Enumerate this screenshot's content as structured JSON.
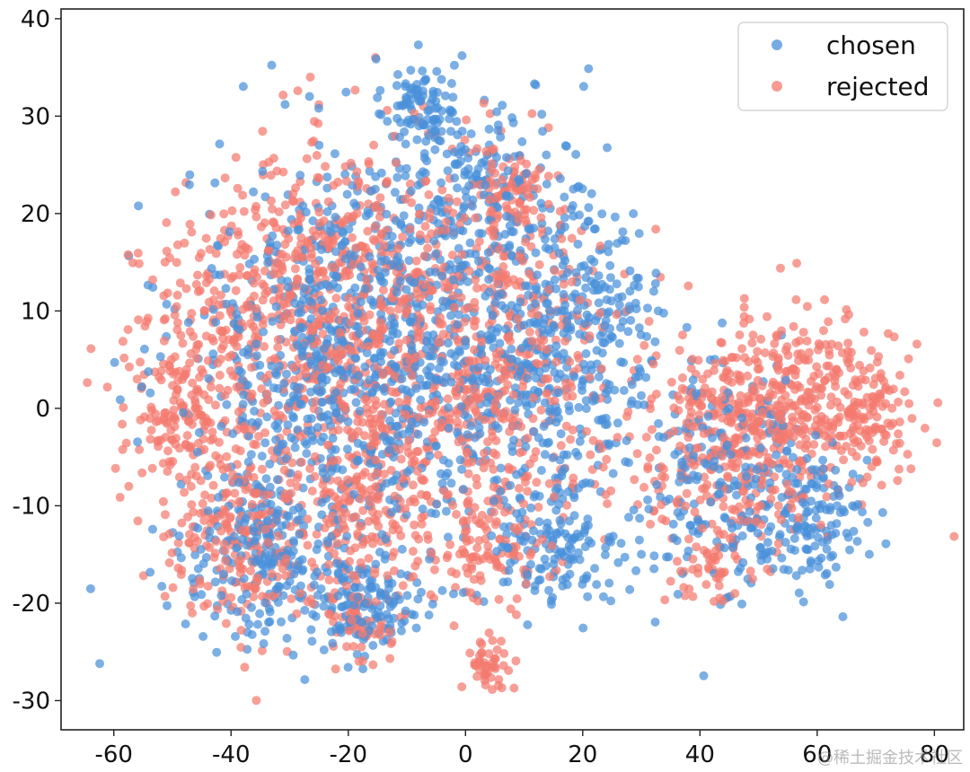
{
  "chart_data": {
    "type": "scatter",
    "title": "",
    "xlabel": "",
    "ylabel": "",
    "xlim": [
      -69,
      85
    ],
    "ylim": [
      -33,
      41
    ],
    "xticks": [
      -60,
      -40,
      -20,
      0,
      20,
      40,
      60,
      80
    ],
    "yticks": [
      -30,
      -20,
      -10,
      0,
      10,
      20,
      30,
      40
    ],
    "xtick_labels": [
      "-60",
      "-40",
      "-20",
      "0",
      "20",
      "40",
      "60",
      "80"
    ],
    "ytick_labels": [
      "-30",
      "-20",
      "-10",
      "0",
      "10",
      "20",
      "30",
      "40"
    ],
    "grid": false,
    "legend_position": "top-right",
    "series": [
      {
        "name": "chosen",
        "color": "#4a90d9",
        "clusters": [
          {
            "cx": -8,
            "cy": 31,
            "sx": 3.0,
            "sy": 2.5,
            "n": 90
          },
          {
            "cx": -25,
            "cy": 5,
            "sx": 12,
            "sy": 10,
            "n": 520
          },
          {
            "cx": -5,
            "cy": 8,
            "sx": 12,
            "sy": 10,
            "n": 520
          },
          {
            "cx": 15,
            "cy": 5,
            "sx": 9,
            "sy": 9,
            "n": 300
          },
          {
            "cx": -35,
            "cy": -15,
            "sx": 7,
            "sy": 4,
            "n": 200
          },
          {
            "cx": -18,
            "cy": -20,
            "sx": 6,
            "sy": 3,
            "n": 150
          },
          {
            "cx": 15,
            "cy": -15,
            "sx": 6,
            "sy": 3,
            "n": 120
          },
          {
            "cx": 45,
            "cy": -8,
            "sx": 9,
            "sy": 6,
            "n": 250
          },
          {
            "cx": 60,
            "cy": -12,
            "sx": 5,
            "sy": 3,
            "n": 100
          },
          {
            "cx": 5,
            "cy": 22,
            "sx": 8,
            "sy": 4,
            "n": 120
          },
          {
            "cx": 22,
            "cy": 10,
            "sx": 5,
            "sy": 4,
            "n": 80
          }
        ]
      },
      {
        "name": "rejected",
        "color": "#f47a6f",
        "clusters": [
          {
            "cx": -48,
            "cy": 2,
            "sx": 5,
            "sy": 7,
            "n": 220
          },
          {
            "cx": -28,
            "cy": 12,
            "sx": 10,
            "sy": 8,
            "n": 450
          },
          {
            "cx": -10,
            "cy": 5,
            "sx": 12,
            "sy": 10,
            "n": 520
          },
          {
            "cx": 10,
            "cy": 5,
            "sx": 10,
            "sy": 8,
            "n": 320
          },
          {
            "cx": 8,
            "cy": 22,
            "sx": 3,
            "sy": 3,
            "n": 90
          },
          {
            "cx": -38,
            "cy": -13,
            "sx": 6,
            "sy": 5,
            "n": 220
          },
          {
            "cx": -18,
            "cy": -10,
            "sx": 6,
            "sy": 5,
            "n": 160
          },
          {
            "cx": -18,
            "cy": -22,
            "sx": 3,
            "sy": 2,
            "n": 60
          },
          {
            "cx": 4,
            "cy": -26,
            "sx": 2,
            "sy": 1.5,
            "n": 45
          },
          {
            "cx": 5,
            "cy": -15,
            "sx": 4,
            "sy": 3,
            "n": 80
          },
          {
            "cx": 55,
            "cy": 0,
            "sx": 9,
            "sy": 5,
            "n": 380
          },
          {
            "cx": 45,
            "cy": -5,
            "sx": 8,
            "sy": 5,
            "n": 220
          },
          {
            "cx": 70,
            "cy": 0,
            "sx": 3,
            "sy": 3,
            "n": 80
          },
          {
            "cx": 42,
            "cy": -16,
            "sx": 4,
            "sy": 2,
            "n": 50
          }
        ]
      }
    ]
  },
  "watermark": "@稀土掘金技术社区"
}
